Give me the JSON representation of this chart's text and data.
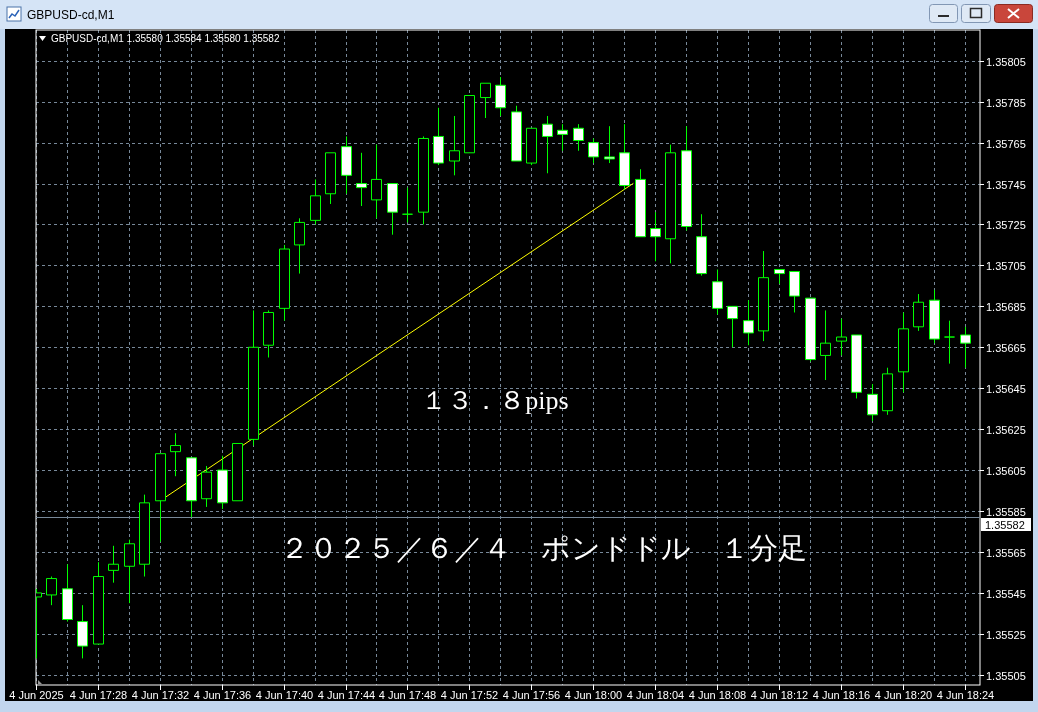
{
  "chart_data": {
    "type": "candlestick",
    "title": "GBPUSD-cd,M1",
    "subtitle": "GBPUSD-cd,M1 1.35580 1.35584 1.35580 1.35582",
    "annotations": [
      "１３．８pips",
      "２０２５／６／４　ポンドドル　１分足"
    ],
    "color": "#00ff00",
    "x": [
      "2025-06-04T17:24",
      "2025-06-04T17:25",
      "2025-06-04T17:26",
      "2025-06-04T17:27",
      "2025-06-04T17:28",
      "2025-06-04T17:29",
      "2025-06-04T17:30",
      "2025-06-04T17:31",
      "2025-06-04T17:32",
      "2025-06-04T17:33",
      "2025-06-04T17:34",
      "2025-06-04T17:35",
      "2025-06-04T17:36",
      "2025-06-04T17:37",
      "2025-06-04T17:38",
      "2025-06-04T17:39",
      "2025-06-04T17:40",
      "2025-06-04T17:41",
      "2025-06-04T17:42",
      "2025-06-04T17:43",
      "2025-06-04T17:44",
      "2025-06-04T17:45",
      "2025-06-04T17:46",
      "2025-06-04T17:47",
      "2025-06-04T17:48",
      "2025-06-04T17:49",
      "2025-06-04T17:50",
      "2025-06-04T17:51",
      "2025-06-04T17:52",
      "2025-06-04T17:53",
      "2025-06-04T17:54",
      "2025-06-04T17:55",
      "2025-06-04T17:56",
      "2025-06-04T17:57",
      "2025-06-04T17:58",
      "2025-06-04T17:59",
      "2025-06-04T18:00",
      "2025-06-04T18:01",
      "2025-06-04T18:02",
      "2025-06-04T18:03",
      "2025-06-04T18:04",
      "2025-06-04T18:05",
      "2025-06-04T18:06",
      "2025-06-04T18:07",
      "2025-06-04T18:08",
      "2025-06-04T18:09",
      "2025-06-04T18:10",
      "2025-06-04T18:11",
      "2025-06-04T18:12",
      "2025-06-04T18:13",
      "2025-06-04T18:14",
      "2025-06-04T18:15",
      "2025-06-04T18:16",
      "2025-06-04T18:17",
      "2025-06-04T18:18",
      "2025-06-04T18:19",
      "2025-06-04T18:20",
      "2025-06-04T18:21",
      "2025-06-04T18:22",
      "2025-06-04T18:23",
      "2025-06-04T18:24"
    ],
    "ohlc": [
      [
        1.35543,
        1.35547,
        1.35513,
        1.35545
      ],
      [
        1.35544,
        1.35553,
        1.35539,
        1.35552
      ],
      [
        1.35547,
        1.35559,
        1.35531,
        1.35532
      ],
      [
        1.35531,
        1.35539,
        1.35513,
        1.35519
      ],
      [
        1.3552,
        1.3556,
        1.3552,
        1.35553
      ],
      [
        1.35556,
        1.35568,
        1.3555,
        1.35559
      ],
      [
        1.35558,
        1.35571,
        1.3554,
        1.35569
      ],
      [
        1.35559,
        1.35593,
        1.35553,
        1.35589
      ],
      [
        1.3559,
        1.35613,
        1.3557,
        1.35613
      ],
      [
        1.35614,
        1.35623,
        1.35602,
        1.35617
      ],
      [
        1.35611,
        1.35611,
        1.35582,
        1.3559
      ],
      [
        1.35591,
        1.35607,
        1.35587,
        1.35604
      ],
      [
        1.35605,
        1.35612,
        1.35586,
        1.35589
      ],
      [
        1.3559,
        1.35618,
        1.3559,
        1.35618
      ],
      [
        1.3562,
        1.35683,
        1.35617,
        1.35665
      ],
      [
        1.35666,
        1.35683,
        1.3566,
        1.35682
      ],
      [
        1.35684,
        1.35715,
        1.35678,
        1.35713
      ],
      [
        1.35715,
        1.35728,
        1.35701,
        1.35726
      ],
      [
        1.35727,
        1.35747,
        1.35725,
        1.35739
      ],
      [
        1.3574,
        1.3576,
        1.35735,
        1.3576
      ],
      [
        1.35763,
        1.35768,
        1.3574,
        1.35749
      ],
      [
        1.35745,
        1.3576,
        1.35734,
        1.35743
      ],
      [
        1.35737,
        1.35764,
        1.35728,
        1.35747
      ],
      [
        1.35745,
        1.35745,
        1.3572,
        1.35731
      ],
      [
        1.3573,
        1.35743,
        1.35726,
        1.3573
      ],
      [
        1.35731,
        1.35768,
        1.35725,
        1.35767
      ],
      [
        1.35768,
        1.35782,
        1.35754,
        1.35755
      ],
      [
        1.35756,
        1.35778,
        1.35749,
        1.35761
      ],
      [
        1.3576,
        1.35788,
        1.3576,
        1.35788
      ],
      [
        1.35787,
        1.35794,
        1.35777,
        1.35794
      ],
      [
        1.35793,
        1.35797,
        1.35778,
        1.35782
      ],
      [
        1.3578,
        1.35783,
        1.35756,
        1.35756
      ],
      [
        1.35755,
        1.35772,
        1.35754,
        1.35772
      ],
      [
        1.35774,
        1.35778,
        1.3575,
        1.35768
      ],
      [
        1.35771,
        1.35774,
        1.35761,
        1.35769
      ],
      [
        1.35772,
        1.35774,
        1.35761,
        1.35766
      ],
      [
        1.35765,
        1.35767,
        1.35755,
        1.35758
      ],
      [
        1.35758,
        1.35773,
        1.35755,
        1.35757
      ],
      [
        1.3576,
        1.35774,
        1.35742,
        1.35744
      ],
      [
        1.35747,
        1.35752,
        1.35719,
        1.35719
      ],
      [
        1.35723,
        1.35731,
        1.35707,
        1.35719
      ],
      [
        1.35718,
        1.35764,
        1.35706,
        1.3576
      ],
      [
        1.35761,
        1.35773,
        1.35722,
        1.35724
      ],
      [
        1.35719,
        1.3573,
        1.357,
        1.35701
      ],
      [
        1.35697,
        1.35703,
        1.35681,
        1.35684
      ],
      [
        1.35685,
        1.35685,
        1.35665,
        1.35679
      ],
      [
        1.35678,
        1.35688,
        1.35666,
        1.35672
      ],
      [
        1.35673,
        1.35712,
        1.35668,
        1.35699
      ],
      [
        1.35703,
        1.35703,
        1.35696,
        1.35701
      ],
      [
        1.35702,
        1.35702,
        1.35682,
        1.3569
      ],
      [
        1.35689,
        1.35689,
        1.35658,
        1.35659
      ],
      [
        1.35661,
        1.35683,
        1.35649,
        1.35667
      ],
      [
        1.35668,
        1.35679,
        1.35661,
        1.3567
      ],
      [
        1.35671,
        1.35671,
        1.3564,
        1.35643
      ],
      [
        1.35642,
        1.35647,
        1.35629,
        1.35632
      ],
      [
        1.35634,
        1.35655,
        1.35632,
        1.35652
      ],
      [
        1.35653,
        1.35682,
        1.35643,
        1.35674
      ],
      [
        1.35675,
        1.35691,
        1.35673,
        1.35687
      ],
      [
        1.35688,
        1.35693,
        1.35667,
        1.35669
      ],
      [
        1.3567,
        1.35678,
        1.35657,
        1.3567
      ],
      [
        1.35671,
        1.35675,
        1.35655,
        1.35667
      ]
    ],
    "series": [
      {
        "type": "line",
        "color": "#ffff00",
        "x": [
          "2025-06-04T17:32:25",
          "2025-06-04T18:02:35"
        ],
        "values": [
          1.35592,
          1.35745
        ]
      }
    ],
    "xlim": [
      "2025-06-04T17:24",
      "2025-06-04T18:25"
    ],
    "xticks": [
      {
        "value": "2025-06-04T17:24",
        "label": "4 Jun 2025"
      },
      {
        "value": "2025-06-04T17:26",
        "label": null
      },
      {
        "value": "2025-06-04T17:28",
        "label": "4 Jun 17:28"
      },
      {
        "value": "2025-06-04T17:30",
        "label": null
      },
      {
        "value": "2025-06-04T17:32",
        "label": "4 Jun 17:32"
      },
      {
        "value": "2025-06-04T17:34",
        "label": null
      },
      {
        "value": "2025-06-04T17:36",
        "label": "4 Jun 17:36"
      },
      {
        "value": "2025-06-04T17:38",
        "label": null
      },
      {
        "value": "2025-06-04T17:40",
        "label": "4 Jun 17:40"
      },
      {
        "value": "2025-06-04T17:42",
        "label": null
      },
      {
        "value": "2025-06-04T17:44",
        "label": "4 Jun 17:44"
      },
      {
        "value": "2025-06-04T17:46",
        "label": null
      },
      {
        "value": "2025-06-04T17:48",
        "label": "4 Jun 17:48"
      },
      {
        "value": "2025-06-04T17:50",
        "label": null
      },
      {
        "value": "2025-06-04T17:52",
        "label": "4 Jun 17:52"
      },
      {
        "value": "2025-06-04T17:54",
        "label": null
      },
      {
        "value": "2025-06-04T17:56",
        "label": "4 Jun 17:56"
      },
      {
        "value": "2025-06-04T17:58",
        "label": null
      },
      {
        "value": "2025-06-04T18:00",
        "label": "4 Jun 18:00"
      },
      {
        "value": "2025-06-04T18:02",
        "label": null
      },
      {
        "value": "2025-06-04T18:04",
        "label": "4 Jun 18:04"
      },
      {
        "value": "2025-06-04T18:06",
        "label": null
      },
      {
        "value": "2025-06-04T18:08",
        "label": "4 Jun 18:08"
      },
      {
        "value": "2025-06-04T18:10",
        "label": null
      },
      {
        "value": "2025-06-04T18:12",
        "label": "4 Jun 18:12"
      },
      {
        "value": "2025-06-04T18:14",
        "label": null
      },
      {
        "value": "2025-06-04T18:16",
        "label": "4 Jun 18:16"
      },
      {
        "value": "2025-06-04T18:18",
        "label": null
      },
      {
        "value": "2025-06-04T18:20",
        "label": "4 Jun 18:20"
      },
      {
        "value": "2025-06-04T18:22",
        "label": null
      },
      {
        "value": "2025-06-04T18:24",
        "label": "4 Jun 18:24"
      }
    ],
    "ylim": [
      1.355,
      1.3582
    ],
    "yticks": [
      1.35505,
      1.35525,
      1.35545,
      1.35565,
      1.35585,
      1.35605,
      1.35625,
      1.35645,
      1.35665,
      1.35685,
      1.35705,
      1.35725,
      1.35745,
      1.35765,
      1.35785,
      1.35805
    ],
    "grid": true,
    "ref_lines": [
      {
        "axis": "y",
        "value": 1.35582,
        "label": "1.35582",
        "color": "#778899"
      }
    ]
  }
}
